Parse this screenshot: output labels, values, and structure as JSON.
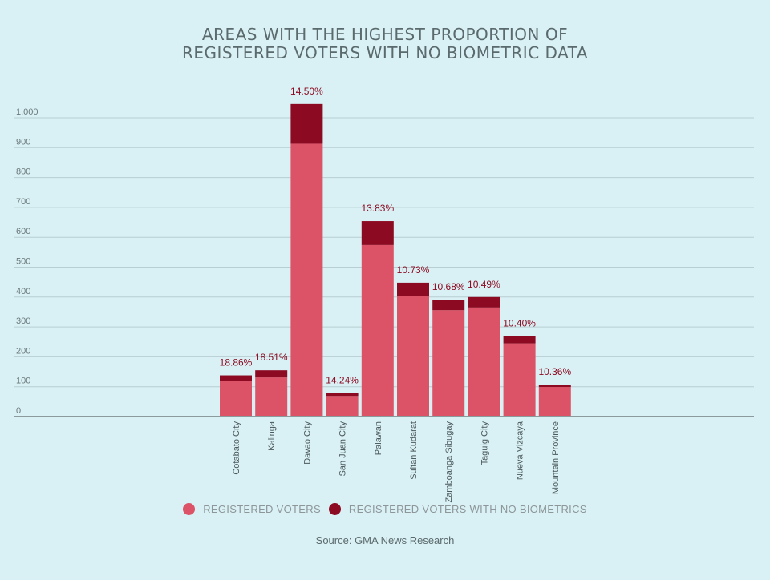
{
  "chart_data": {
    "type": "bar",
    "stacked": true,
    "title_lines": [
      "AREAS WITH THE HIGHEST PROPORTION OF",
      "REGISTERED VOTERS WITH NO BIOMETRIC DATA"
    ],
    "categories": [
      "Cotabato City",
      "Kalinga",
      "Davao City",
      "San Juan City",
      "Palawan",
      "Sultan Kudarat",
      "Zamboanga Sibugay",
      "Taguig City",
      "Nueva Vizcaya",
      "Mountain Province"
    ],
    "series": [
      {
        "name": "REGISTERED VOTERS",
        "color": "#dc5266",
        "values": [
          118,
          131,
          913,
          69,
          574,
          403,
          356,
          365,
          245,
          99
        ]
      },
      {
        "name": "REGISTERED VOTERS WITH NO BIOMETRICS",
        "color": "#8c0a22",
        "values": [
          20,
          24,
          133,
          10,
          80,
          45,
          35,
          35,
          24,
          8
        ]
      }
    ],
    "data_labels": [
      "18.86%",
      "18.51%",
      "14.50%",
      "14.24%",
      "13.83%",
      "10.73%",
      "10.68%",
      "10.49%",
      "10.40%",
      "10.36%"
    ],
    "y_ticks": [
      "0",
      "100",
      "200",
      "300",
      "400",
      "500",
      "600",
      "700",
      "800",
      "900",
      "1,000"
    ],
    "ylim": [
      0,
      1000
    ],
    "grid": true,
    "legend_position": "bottom",
    "source": "Source: GMA News Research"
  }
}
